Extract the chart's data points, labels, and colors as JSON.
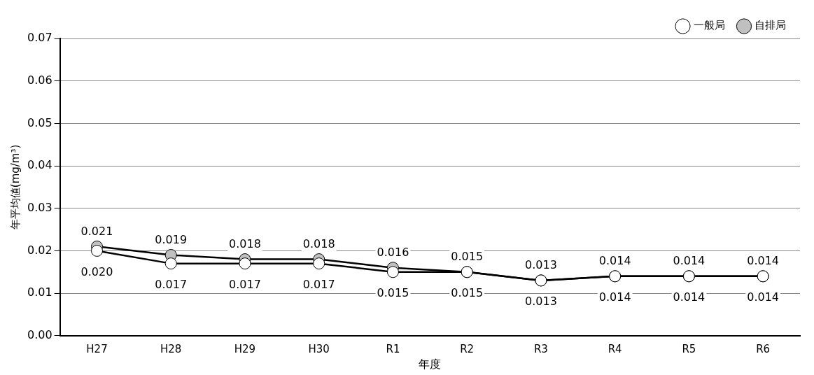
{
  "chart_data": {
    "type": "line",
    "xlabel": "年度",
    "ylabel": "年平均値(mg/m³)",
    "categories": [
      "H27",
      "H28",
      "H29",
      "H30",
      "R1",
      "R2",
      "R3",
      "R4",
      "R5",
      "R6"
    ],
    "series": [
      {
        "name": "一般局",
        "color": "#ffffff",
        "values": [
          0.02,
          0.017,
          0.017,
          0.017,
          0.015,
          0.015,
          0.013,
          0.014,
          0.014,
          0.014
        ],
        "value_labels": [
          "0.020",
          "0.017",
          "0.017",
          "0.017",
          "0.015",
          "0.015",
          "0.013",
          "0.014",
          "0.014",
          "0.014"
        ]
      },
      {
        "name": "自排局",
        "color": "#c0c0c0",
        "values": [
          0.021,
          0.019,
          0.018,
          0.018,
          0.016,
          0.015,
          0.013,
          0.014,
          0.014,
          0.014
        ],
        "value_labels": [
          "0.021",
          "0.019",
          "0.018",
          "0.018",
          "0.016",
          "0.015",
          "0.013",
          "0.014",
          "0.014",
          "0.014"
        ]
      }
    ],
    "ylim": [
      0,
      0.07
    ],
    "yticks": [
      {
        "value": 0,
        "label": "0.00"
      },
      {
        "value": 0.01,
        "label": "0.01"
      },
      {
        "value": 0.02,
        "label": "0.02"
      },
      {
        "value": 0.03,
        "label": "0.03"
      },
      {
        "value": 0.04,
        "label": "0.04"
      },
      {
        "value": 0.05,
        "label": "0.05"
      },
      {
        "value": 0.06,
        "label": "0.06"
      },
      {
        "value": 0.07,
        "label": "0.07"
      }
    ],
    "grid": "y",
    "legend": "top right",
    "marker": "circle",
    "line_style": "solid"
  }
}
